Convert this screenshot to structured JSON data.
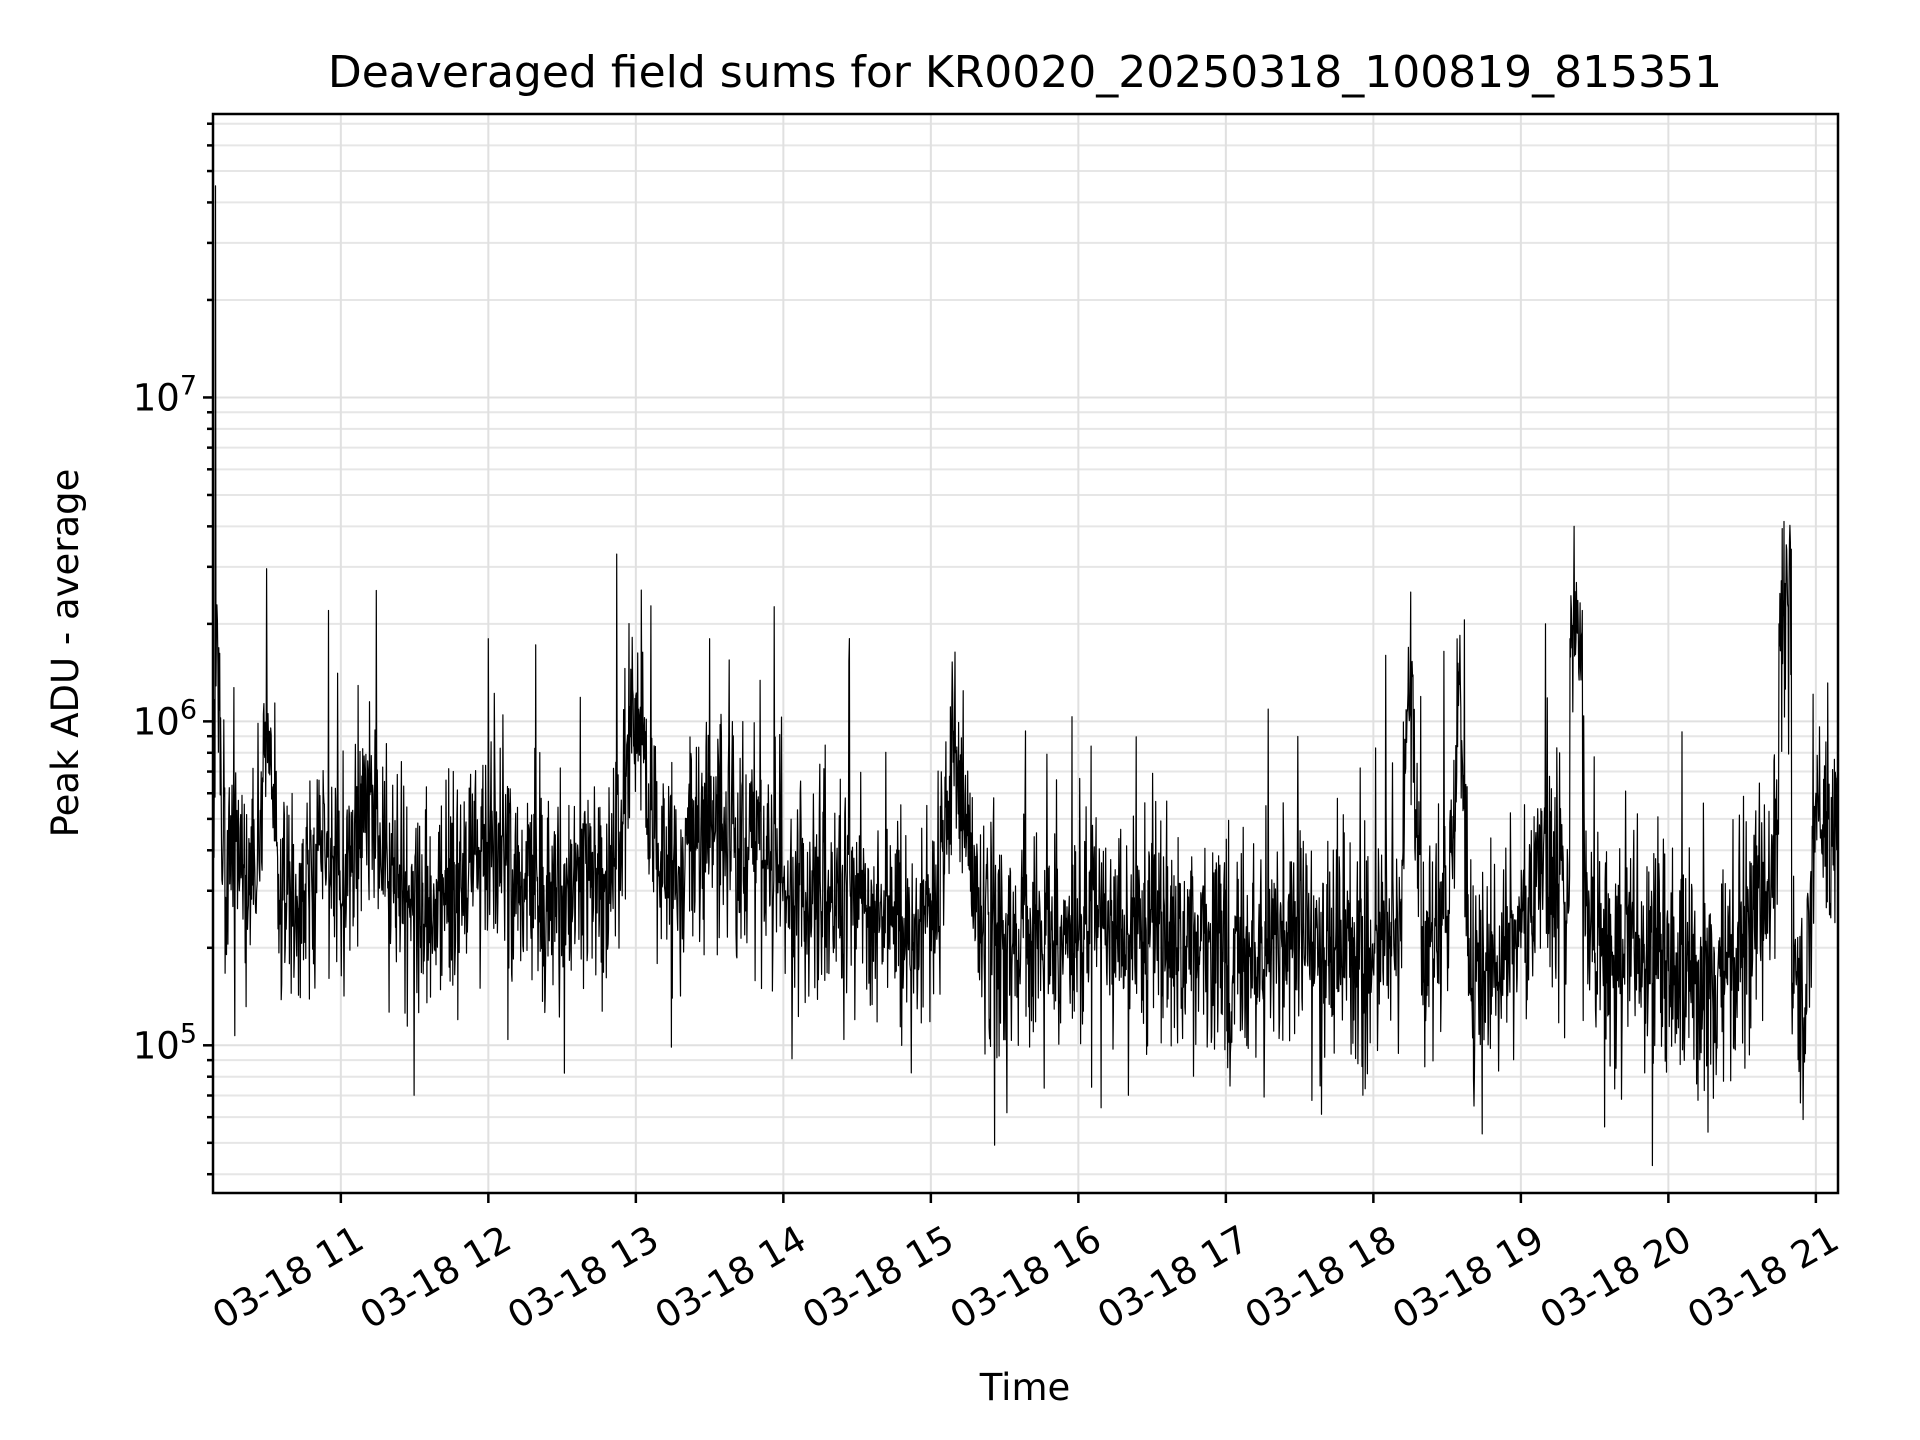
{
  "chart_data": {
    "type": "line",
    "title": "Deaveraged field sums for KR0020_20250318_100819_815351",
    "xlabel": "Time",
    "ylabel": "Peak ADU - average",
    "x_scale": "time",
    "y_scale": "log",
    "xlim": [
      "2025-03-18 10:08",
      "2025-03-18 21:09"
    ],
    "ylim": [
      35000,
      75000000
    ],
    "grid": "on",
    "x_tick_labels": [
      "03-18 11",
      "03-18 12",
      "03-18 13",
      "03-18 14",
      "03-18 15",
      "03-18 16",
      "03-18 17",
      "03-18 18",
      "03-18 19",
      "03-18 20",
      "03-18 21"
    ],
    "x_tick_values": [
      "2025-03-18 11:00",
      "2025-03-18 12:00",
      "2025-03-18 13:00",
      "2025-03-18 14:00",
      "2025-03-18 15:00",
      "2025-03-18 16:00",
      "2025-03-18 17:00",
      "2025-03-18 18:00",
      "2025-03-18 19:00",
      "2025-03-18 20:00",
      "2025-03-18 21:00"
    ],
    "y_tick_values": [
      100000,
      1000000,
      10000000
    ],
    "y_tick_labels": [
      {
        "base": "10",
        "exp": "5"
      },
      {
        "base": "10",
        "exp": "6"
      },
      {
        "base": "10",
        "exp": "7"
      }
    ],
    "series": [
      {
        "color": "#000000",
        "x": [
          "2025-03-18 10:08",
          "2025-03-18 10:09",
          "2025-03-18 10:10",
          "2025-03-18 10:12",
          "2025-03-18 10:15",
          "2025-03-18 10:20",
          "2025-03-18 10:25",
          "2025-03-18 10:30",
          "2025-03-18 10:35",
          "2025-03-18 10:40",
          "2025-03-18 10:45",
          "2025-03-18 10:50",
          "2025-03-18 10:55",
          "2025-03-18 11:00",
          "2025-03-18 11:10",
          "2025-03-18 11:20",
          "2025-03-18 11:30",
          "2025-03-18 11:40",
          "2025-03-18 11:50",
          "2025-03-18 12:00",
          "2025-03-18 12:10",
          "2025-03-18 12:20",
          "2025-03-18 12:30",
          "2025-03-18 12:40",
          "2025-03-18 12:50",
          "2025-03-18 13:00",
          "2025-03-18 13:10",
          "2025-03-18 13:20",
          "2025-03-18 13:30",
          "2025-03-18 13:40",
          "2025-03-18 13:50",
          "2025-03-18 14:00",
          "2025-03-18 14:10",
          "2025-03-18 14:20",
          "2025-03-18 14:30",
          "2025-03-18 14:40",
          "2025-03-18 14:50",
          "2025-03-18 15:00",
          "2025-03-18 15:10",
          "2025-03-18 15:20",
          "2025-03-18 15:30",
          "2025-03-18 15:40",
          "2025-03-18 15:50",
          "2025-03-18 16:00",
          "2025-03-18 16:10",
          "2025-03-18 16:20",
          "2025-03-18 16:30",
          "2025-03-18 16:40",
          "2025-03-18 16:50",
          "2025-03-18 17:00",
          "2025-03-18 17:10",
          "2025-03-18 17:20",
          "2025-03-18 17:30",
          "2025-03-18 17:40",
          "2025-03-18 17:50",
          "2025-03-18 18:00",
          "2025-03-18 18:05",
          "2025-03-18 18:10",
          "2025-03-18 18:15",
          "2025-03-18 18:20",
          "2025-03-18 18:30",
          "2025-03-18 18:35",
          "2025-03-18 18:40",
          "2025-03-18 18:50",
          "2025-03-18 19:00",
          "2025-03-18 19:05",
          "2025-03-18 19:10",
          "2025-03-18 19:15",
          "2025-03-18 19:20",
          "2025-03-18 19:25",
          "2025-03-18 19:30",
          "2025-03-18 19:40",
          "2025-03-18 19:50",
          "2025-03-18 20:00",
          "2025-03-18 20:10",
          "2025-03-18 20:20",
          "2025-03-18 20:30",
          "2025-03-18 20:40",
          "2025-03-18 20:45",
          "2025-03-18 20:50",
          "2025-03-18 20:55",
          "2025-03-18 21:00",
          "2025-03-18 21:05",
          "2025-03-18 21:09"
        ],
        "y": [
          500000,
          45000000,
          1500000,
          350000,
          400000,
          330000,
          350000,
          1000000,
          280000,
          320000,
          300000,
          330000,
          2200000,
          260000,
          600000,
          350000,
          280000,
          300000,
          290000,
          1800000,
          300000,
          330000,
          310000,
          320000,
          320000,
          1200000,
          340000,
          360000,
          1800000,
          380000,
          420000,
          330000,
          270000,
          300000,
          270000,
          260000,
          230000,
          220000,
          800000,
          210000,
          200000,
          220000,
          210000,
          210000,
          230000,
          220000,
          240000,
          200000,
          210000,
          180000,
          200000,
          220000,
          230000,
          200000,
          210000,
          170000,
          1600000,
          180000,
          1400000,
          180000,
          250000,
          1300000,
          150000,
          180000,
          200000,
          250000,
          2000000,
          230000,
          1800000,
          2200000,
          180000,
          200000,
          180000,
          170000,
          150000,
          160000,
          220000,
          280000,
          2000000,
          3400000,
          100000,
          600000,
          500000,
          600000
        ]
      }
    ]
  }
}
